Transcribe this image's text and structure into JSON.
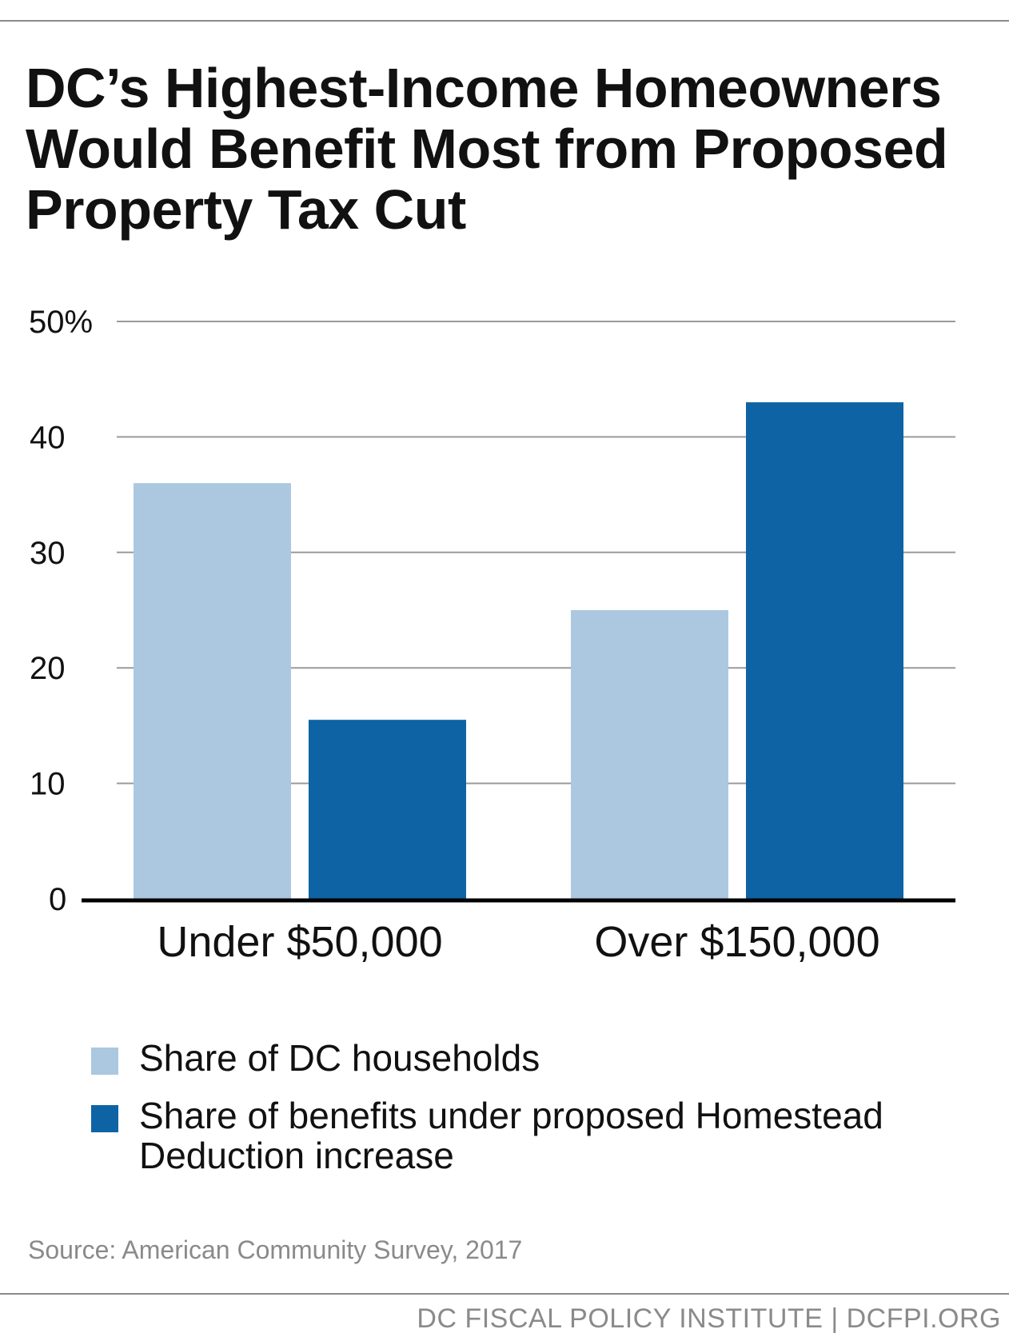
{
  "header": {
    "title": "DC’s Highest-Income Homeowners Would Benefit Most from Proposed Property Tax Cut"
  },
  "chart_data": {
    "type": "bar",
    "title": "DC’s Highest-Income Homeowners Would Benefit Most from Proposed Property Tax Cut",
    "categories": [
      "Under $50,000",
      "Over $150,000"
    ],
    "series": [
      {
        "name": "Share of DC households",
        "values": [
          36,
          25
        ],
        "color": "#abc8e0"
      },
      {
        "name": "Share of benefits under proposed Homestead Deduction increase",
        "values": [
          15.5,
          43
        ],
        "color": "#0e63a4"
      }
    ],
    "ylim": [
      0,
      50
    ],
    "yticks": [
      0,
      10,
      20,
      30,
      40,
      50
    ],
    "ytick_labels": [
      "0",
      "10",
      "20",
      "30",
      "40",
      "50%"
    ],
    "xlabel": "",
    "ylabel": "",
    "grid": true,
    "legend_position": "bottom"
  },
  "legend": {
    "items": [
      {
        "label": "Share of DC households",
        "color": "#abc8e0"
      },
      {
        "label": "Share of benefits under proposed Homestead Deduction increase",
        "color": "#0e63a4"
      }
    ]
  },
  "source": "Source: American Community Survey, 2017",
  "footer": "DC FISCAL POLICY INSTITUTE | DCFPI.ORG"
}
